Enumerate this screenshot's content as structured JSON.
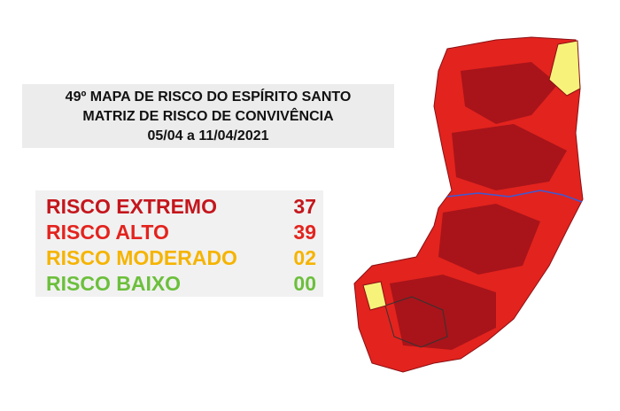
{
  "title": {
    "lines": [
      "49º MAPA DE RISCO DO ESPÍRITO SANTO",
      "MATRIZ DE RISCO DE CONVIVÊNCIA",
      "05/04 a 11/04/2021"
    ]
  },
  "legend": {
    "items": [
      {
        "label": "RISCO EXTREMO",
        "count": "37",
        "color": "#c4161c"
      },
      {
        "label": "RISCO ALTO",
        "count": "39",
        "color": "#e3231e"
      },
      {
        "label": "RISCO MODERADO",
        "count": "02",
        "color": "#f5b400"
      },
      {
        "label": "RISCO BAIXO",
        "count": "00",
        "color": "#6cbf3c"
      }
    ]
  }
}
